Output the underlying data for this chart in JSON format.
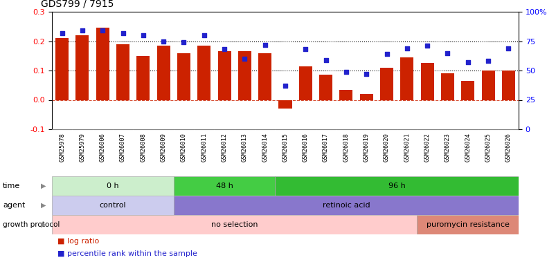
{
  "title": "GDS799 / 7915",
  "samples": [
    "GSM25978",
    "GSM25979",
    "GSM26006",
    "GSM26007",
    "GSM26008",
    "GSM26009",
    "GSM26010",
    "GSM26011",
    "GSM26012",
    "GSM26013",
    "GSM26014",
    "GSM26015",
    "GSM26016",
    "GSM26017",
    "GSM26018",
    "GSM26019",
    "GSM26020",
    "GSM26021",
    "GSM26022",
    "GSM26023",
    "GSM26024",
    "GSM26025",
    "GSM26026"
  ],
  "log_ratio": [
    0.21,
    0.22,
    0.245,
    0.19,
    0.15,
    0.185,
    0.16,
    0.185,
    0.165,
    0.165,
    0.16,
    -0.03,
    0.115,
    0.085,
    0.035,
    0.02,
    0.11,
    0.145,
    0.125,
    0.09,
    0.065,
    0.1,
    0.1
  ],
  "percentile": [
    82,
    84,
    84,
    82,
    80,
    75,
    74,
    80,
    68,
    60,
    72,
    37,
    68,
    59,
    49,
    47,
    64,
    69,
    71,
    65,
    57,
    58,
    69
  ],
  "ylim_left": [
    -0.1,
    0.3
  ],
  "ylim_right": [
    0,
    100
  ],
  "yticks_left": [
    -0.1,
    0.0,
    0.1,
    0.2,
    0.3
  ],
  "yticks_right": [
    0,
    25,
    50,
    75,
    100
  ],
  "ytick_labels_right": [
    "0",
    "25",
    "50",
    "75",
    "100%"
  ],
  "bar_color": "#cc2200",
  "dot_color": "#2222cc",
  "time_groups": [
    {
      "label": "0 h",
      "start": 0,
      "end": 6,
      "color": "#cceecc"
    },
    {
      "label": "48 h",
      "start": 6,
      "end": 11,
      "color": "#44cc44"
    },
    {
      "label": "96 h",
      "start": 11,
      "end": 23,
      "color": "#33bb33"
    }
  ],
  "agent_groups": [
    {
      "label": "control",
      "start": 0,
      "end": 6,
      "color": "#ccccee"
    },
    {
      "label": "retinoic acid",
      "start": 6,
      "end": 23,
      "color": "#8877cc"
    }
  ],
  "growth_groups": [
    {
      "label": "no selection",
      "start": 0,
      "end": 18,
      "color": "#ffcccc"
    },
    {
      "label": "puromycin resistance",
      "start": 18,
      "end": 23,
      "color": "#dd8877"
    }
  ],
  "xtick_bg_color": "#dddddd",
  "band_edge_color": "#aaaaaa"
}
